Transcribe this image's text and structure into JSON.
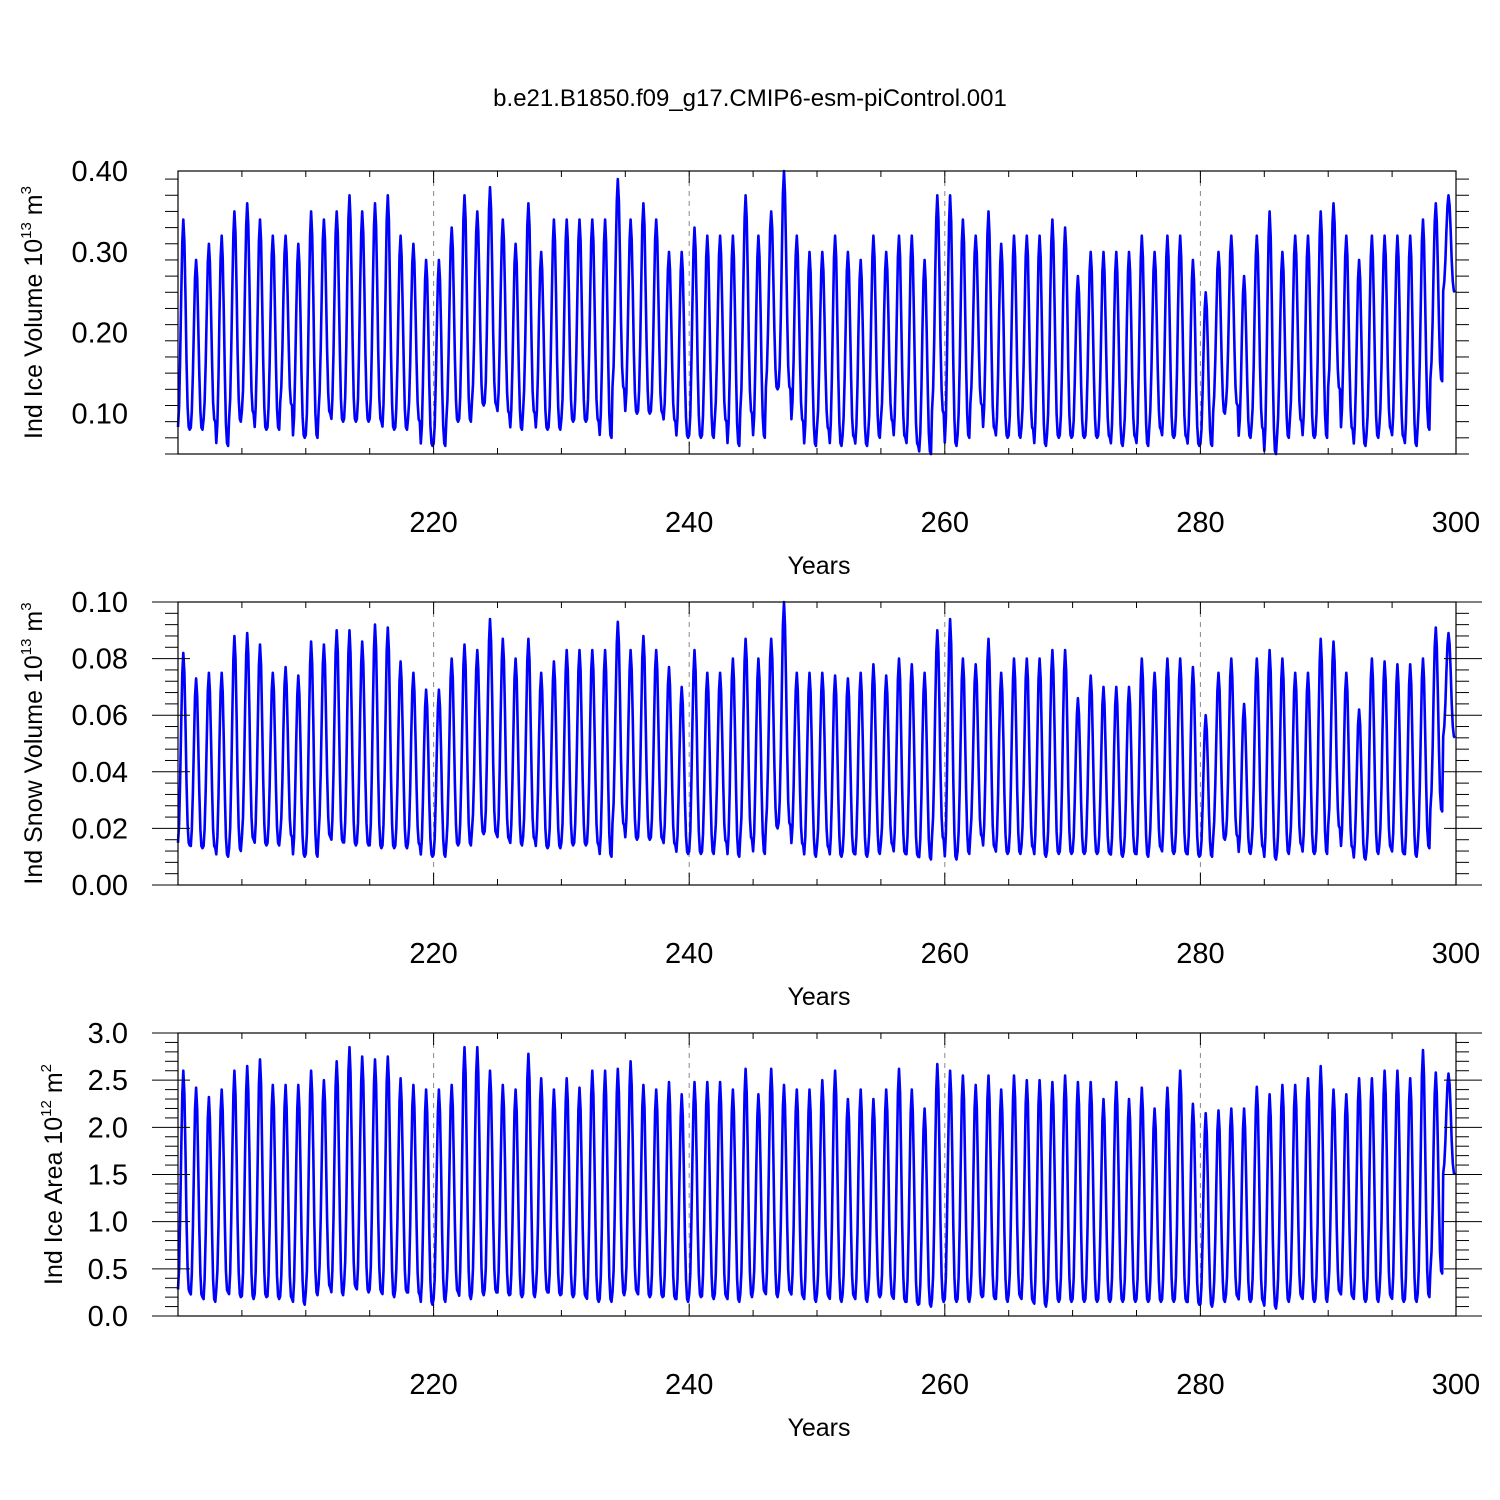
{
  "figure": {
    "title": "b.e21.B1850.f09_g17.CMIP6-esm-piControl.001",
    "line_color": "#0000ff",
    "grid_color": "#888888"
  },
  "chart_data": [
    {
      "type": "line",
      "title": "",
      "xlabel": "Years",
      "ylabel": {
        "prefix": "Ind Ice Volume 10",
        "exp1": "13",
        "mid": " m",
        "exp2": "3"
      },
      "xlim": [
        200,
        300
      ],
      "ylim": [
        0.05,
        0.4
      ],
      "x_ticks": [
        220,
        240,
        260,
        280,
        300
      ],
      "x_tick_labels": [
        "220",
        "240",
        "260",
        "280",
        "300"
      ],
      "y_ticks": [
        0.1,
        0.2,
        0.3,
        0.4
      ],
      "y_tick_labels": [
        "0.10",
        "0.20",
        "0.30",
        "0.40"
      ],
      "grid": "vertical dashed at labeled x ticks",
      "series": [
        {
          "color": "#0000ff",
          "sampling": "monthly, one annual cycle per year, years 200-300",
          "annual_max": [
            0.34,
            0.29,
            0.31,
            0.32,
            0.35,
            0.36,
            0.34,
            0.32,
            0.32,
            0.31,
            0.35,
            0.34,
            0.35,
            0.37,
            0.35,
            0.36,
            0.37,
            0.32,
            0.31,
            0.29,
            0.29,
            0.33,
            0.37,
            0.35,
            0.38,
            0.34,
            0.31,
            0.36,
            0.3,
            0.34,
            0.34,
            0.34,
            0.34,
            0.34,
            0.39,
            0.34,
            0.36,
            0.34,
            0.3,
            0.3,
            0.33,
            0.32,
            0.32,
            0.32,
            0.37,
            0.32,
            0.35,
            0.4,
            0.32,
            0.3,
            0.3,
            0.32,
            0.3,
            0.29,
            0.32,
            0.3,
            0.32,
            0.32,
            0.29,
            0.37,
            0.37,
            0.34,
            0.32,
            0.35,
            0.31,
            0.32,
            0.32,
            0.32,
            0.34,
            0.33,
            0.27,
            0.3,
            0.3,
            0.3,
            0.3,
            0.32,
            0.3,
            0.32,
            0.32,
            0.29,
            0.25,
            0.3,
            0.32,
            0.27,
            0.32,
            0.35,
            0.3,
            0.32,
            0.32,
            0.35,
            0.36,
            0.32,
            0.29,
            0.32,
            0.32,
            0.32,
            0.32,
            0.34,
            0.36,
            0.37
          ],
          "annual_min": [
            0.08,
            0.08,
            0.09,
            0.06,
            0.09,
            0.1,
            0.08,
            0.08,
            0.11,
            0.07,
            0.07,
            0.1,
            0.09,
            0.09,
            0.09,
            0.09,
            0.08,
            0.08,
            0.09,
            0.06,
            0.06,
            0.09,
            0.09,
            0.11,
            0.11,
            0.1,
            0.08,
            0.1,
            0.08,
            0.08,
            0.09,
            0.09,
            0.09,
            0.07,
            0.13,
            0.1,
            0.1,
            0.1,
            0.09,
            0.07,
            0.07,
            0.07,
            0.09,
            0.06,
            0.1,
            0.07,
            0.13,
            0.13,
            0.09,
            0.06,
            0.08,
            0.06,
            0.07,
            0.06,
            0.07,
            0.09,
            0.07,
            0.06,
            0.05,
            0.1,
            0.06,
            0.07,
            0.11,
            0.08,
            0.07,
            0.07,
            0.08,
            0.06,
            0.07,
            0.07,
            0.07,
            0.07,
            0.07,
            0.06,
            0.07,
            0.06,
            0.08,
            0.07,
            0.07,
            0.06,
            0.06,
            0.1,
            0.11,
            0.07,
            0.08,
            0.05,
            0.07,
            0.09,
            0.07,
            0.07,
            0.13,
            0.08,
            0.06,
            0.07,
            0.08,
            0.07,
            0.06,
            0.08,
            0.14,
            0.25
          ]
        }
      ]
    },
    {
      "type": "line",
      "title": "",
      "xlabel": "Years",
      "ylabel": {
        "prefix": "Ind Snow Volume 10",
        "exp1": "13",
        "mid": " m",
        "exp2": "3"
      },
      "xlim": [
        200,
        300
      ],
      "ylim": [
        0.0,
        0.1
      ],
      "x_ticks": [
        220,
        240,
        260,
        280,
        300
      ],
      "x_tick_labels": [
        "220",
        "240",
        "260",
        "280",
        "300"
      ],
      "y_ticks": [
        0.0,
        0.02,
        0.04,
        0.06,
        0.08,
        0.1
      ],
      "y_tick_labels": [
        "0.00",
        "0.02",
        "0.04",
        "0.06",
        "0.08",
        "0.10"
      ],
      "grid": "vertical dashed at labeled x ticks",
      "series": [
        {
          "color": "#0000ff",
          "sampling": "monthly, one annual cycle per year, years 200-300",
          "annual_max": [
            0.082,
            0.073,
            0.075,
            0.075,
            0.088,
            0.089,
            0.085,
            0.075,
            0.077,
            0.074,
            0.086,
            0.085,
            0.09,
            0.09,
            0.086,
            0.092,
            0.091,
            0.079,
            0.075,
            0.069,
            0.069,
            0.08,
            0.085,
            0.083,
            0.094,
            0.087,
            0.08,
            0.087,
            0.075,
            0.079,
            0.083,
            0.083,
            0.083,
            0.083,
            0.093,
            0.083,
            0.088,
            0.083,
            0.077,
            0.07,
            0.083,
            0.075,
            0.075,
            0.08,
            0.087,
            0.08,
            0.087,
            0.1,
            0.075,
            0.075,
            0.075,
            0.074,
            0.073,
            0.075,
            0.078,
            0.074,
            0.08,
            0.078,
            0.075,
            0.09,
            0.094,
            0.08,
            0.078,
            0.087,
            0.075,
            0.08,
            0.08,
            0.08,
            0.083,
            0.083,
            0.066,
            0.074,
            0.07,
            0.07,
            0.07,
            0.08,
            0.075,
            0.08,
            0.08,
            0.077,
            0.06,
            0.075,
            0.08,
            0.064,
            0.08,
            0.083,
            0.08,
            0.075,
            0.075,
            0.087,
            0.086,
            0.075,
            0.062,
            0.08,
            0.079,
            0.078,
            0.078,
            0.08,
            0.091,
            0.089
          ],
          "annual_min": [
            0.014,
            0.013,
            0.013,
            0.01,
            0.012,
            0.016,
            0.014,
            0.014,
            0.017,
            0.01,
            0.01,
            0.017,
            0.015,
            0.014,
            0.014,
            0.013,
            0.013,
            0.013,
            0.014,
            0.01,
            0.01,
            0.014,
            0.014,
            0.018,
            0.018,
            0.016,
            0.014,
            0.016,
            0.013,
            0.013,
            0.014,
            0.014,
            0.014,
            0.01,
            0.021,
            0.016,
            0.016,
            0.016,
            0.014,
            0.011,
            0.011,
            0.011,
            0.015,
            0.01,
            0.016,
            0.011,
            0.02,
            0.021,
            0.014,
            0.01,
            0.013,
            0.01,
            0.011,
            0.01,
            0.011,
            0.014,
            0.011,
            0.01,
            0.009,
            0.016,
            0.009,
            0.011,
            0.017,
            0.013,
            0.011,
            0.011,
            0.013,
            0.01,
            0.011,
            0.011,
            0.011,
            0.011,
            0.011,
            0.01,
            0.011,
            0.01,
            0.013,
            0.011,
            0.011,
            0.01,
            0.01,
            0.016,
            0.017,
            0.011,
            0.013,
            0.009,
            0.011,
            0.014,
            0.011,
            0.011,
            0.02,
            0.013,
            0.009,
            0.011,
            0.013,
            0.011,
            0.01,
            0.013,
            0.026,
            0.052
          ]
        }
      ]
    },
    {
      "type": "line",
      "title": "",
      "xlabel": "Years",
      "ylabel": {
        "prefix": "Ind Ice Area 10",
        "exp1": "12",
        "mid": " m",
        "exp2": "2"
      },
      "xlim": [
        200,
        300
      ],
      "ylim": [
        0.0,
        3.0
      ],
      "x_ticks": [
        220,
        240,
        260,
        280,
        300
      ],
      "x_tick_labels": [
        "220",
        "240",
        "260",
        "280",
        "300"
      ],
      "y_ticks": [
        0.0,
        0.5,
        1.0,
        1.5,
        2.0,
        2.5,
        3.0
      ],
      "y_tick_labels": [
        "0.0",
        "0.5",
        "1.0",
        "1.5",
        "2.0",
        "2.5",
        "3.0"
      ],
      "grid": "vertical dashed at labeled x ticks",
      "series": [
        {
          "color": "#0000ff",
          "sampling": "monthly, one annual cycle per year, years 200-300",
          "annual_max": [
            2.6,
            2.42,
            2.32,
            2.4,
            2.6,
            2.65,
            2.72,
            2.45,
            2.45,
            2.45,
            2.6,
            2.5,
            2.7,
            2.85,
            2.75,
            2.72,
            2.75,
            2.52,
            2.45,
            2.4,
            2.4,
            2.45,
            2.85,
            2.85,
            2.6,
            2.45,
            2.4,
            2.78,
            2.52,
            2.4,
            2.52,
            2.42,
            2.6,
            2.6,
            2.62,
            2.7,
            2.45,
            2.4,
            2.48,
            2.35,
            2.48,
            2.48,
            2.48,
            2.4,
            2.62,
            2.35,
            2.62,
            2.45,
            2.4,
            2.4,
            2.5,
            2.6,
            2.3,
            2.4,
            2.3,
            2.4,
            2.62,
            2.4,
            2.2,
            2.67,
            2.6,
            2.55,
            2.45,
            2.55,
            2.4,
            2.55,
            2.5,
            2.5,
            2.48,
            2.55,
            2.48,
            2.48,
            2.3,
            2.48,
            2.3,
            2.42,
            2.2,
            2.42,
            2.6,
            2.25,
            2.15,
            2.18,
            2.2,
            2.2,
            2.43,
            2.35,
            2.45,
            2.45,
            2.52,
            2.65,
            2.4,
            2.35,
            2.52,
            2.52,
            2.6,
            2.6,
            2.52,
            2.82,
            2.58,
            2.57
          ],
          "annual_min": [
            0.25,
            0.2,
            0.15,
            0.25,
            0.2,
            0.18,
            0.2,
            0.18,
            0.18,
            0.12,
            0.22,
            0.3,
            0.22,
            0.3,
            0.25,
            0.25,
            0.2,
            0.25,
            0.22,
            0.12,
            0.15,
            0.25,
            0.18,
            0.22,
            0.25,
            0.22,
            0.2,
            0.2,
            0.25,
            0.22,
            0.2,
            0.2,
            0.15,
            0.15,
            0.22,
            0.25,
            0.2,
            0.2,
            0.18,
            0.15,
            0.2,
            0.18,
            0.2,
            0.15,
            0.2,
            0.25,
            0.2,
            0.25,
            0.2,
            0.15,
            0.2,
            0.15,
            0.2,
            0.15,
            0.2,
            0.2,
            0.15,
            0.12,
            0.1,
            0.15,
            0.15,
            0.15,
            0.2,
            0.18,
            0.15,
            0.2,
            0.15,
            0.1,
            0.15,
            0.15,
            0.15,
            0.15,
            0.15,
            0.15,
            0.15,
            0.15,
            0.15,
            0.15,
            0.15,
            0.12,
            0.1,
            0.15,
            0.2,
            0.15,
            0.15,
            0.08,
            0.15,
            0.2,
            0.15,
            0.15,
            0.25,
            0.2,
            0.15,
            0.15,
            0.2,
            0.15,
            0.15,
            0.2,
            0.45,
            1.5
          ]
        }
      ]
    }
  ]
}
